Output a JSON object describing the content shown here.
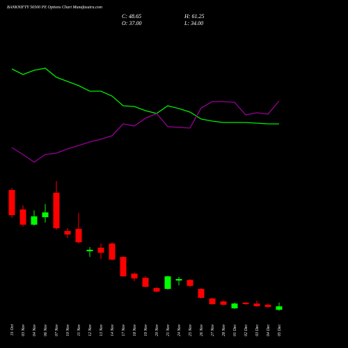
{
  "chart_data": {
    "type": "candlestick",
    "title": "BANKNIFTY 56500 PE Options Chart Munafasutra.com",
    "info": [
      "C: 48.65",
      "O: 37.00",
      "H: 61.25",
      "L: 34.00"
    ],
    "categories": [
      "31 Oct",
      "03 Nov",
      "04 Nov",
      "06 Nov",
      "07 Nov",
      "10 Nov",
      "11 Nov",
      "12 Nov",
      "13 Nov",
      "14 Nov",
      "17 Nov",
      "18 Nov",
      "19 Nov",
      "20 Nov",
      "21 Nov",
      "24 Nov",
      "25 Nov",
      "26 Nov",
      "27 Nov",
      "28 Nov",
      "01 Dec",
      "02 Dec",
      "03 Dec",
      "04 Dec",
      "05 Dec"
    ],
    "open": [
      438,
      373,
      322,
      347,
      429,
      301,
      308,
      233,
      245,
      259,
      214,
      158,
      144,
      110,
      107,
      135,
      137,
      107,
      75,
      65,
      42,
      61,
      58,
      54,
      37.0
    ],
    "high": [
      445,
      387,
      370,
      391,
      468,
      310,
      361,
      247,
      259,
      263,
      216,
      161,
      149,
      112,
      151,
      147,
      140,
      110,
      77,
      68,
      61,
      63,
      68,
      58,
      61.25
    ],
    "low": [
      345,
      315,
      319,
      329,
      305,
      277,
      259,
      214,
      207,
      203,
      147,
      133,
      112,
      96,
      105,
      119,
      112,
      75,
      54,
      52,
      40,
      54,
      47,
      44,
      34.0
    ],
    "close": [
      354,
      322,
      350,
      363,
      310,
      289,
      263,
      238,
      228,
      205,
      149,
      142,
      114,
      98,
      149,
      140,
      117,
      77,
      56,
      54,
      58,
      56,
      49,
      47,
      48.65
    ],
    "up_color": "#00ff00",
    "down_color": "#ff0000",
    "ylim": [
      0,
      490
    ],
    "lines": [
      {
        "color": "#00ee00",
        "values": [
          141,
          133,
          139,
          142,
          129,
          123,
          117,
          109,
          109,
          102,
          88,
          87,
          81,
          77,
          88,
          84,
          79,
          69,
          66,
          64,
          64,
          64,
          63,
          62,
          62
        ]
      },
      {
        "color": "#990099",
        "values": [
          28,
          18,
          7,
          18,
          20,
          26,
          31,
          36,
          40,
          45,
          62,
          59,
          70,
          77,
          58,
          57,
          56,
          85,
          94,
          94,
          93,
          75,
          78,
          76,
          95
        ]
      }
    ],
    "y2lim": [
      0,
      150
    ]
  }
}
